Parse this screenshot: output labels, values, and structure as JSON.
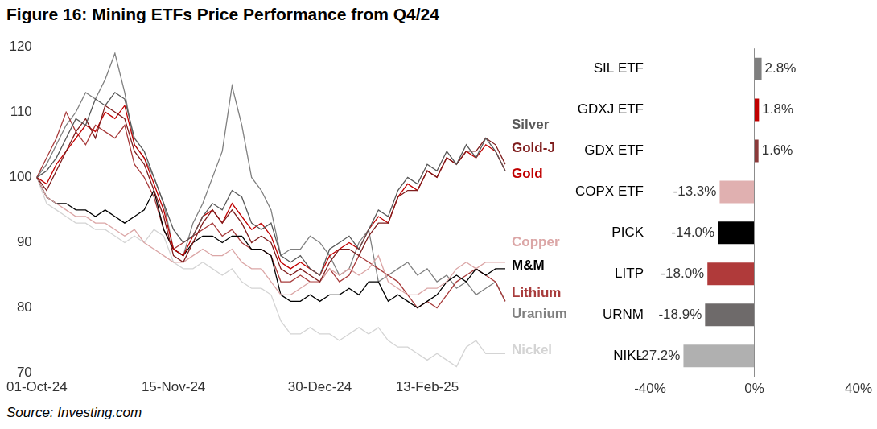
{
  "title": "Figure 16: Mining ETFs Price Performance from Q4/24",
  "source": "Source: Investing.com",
  "chart_data": [
    {
      "type": "line",
      "categories": [
        "01-Oct-24",
        null,
        null,
        null,
        null,
        null,
        null,
        null,
        null,
        null,
        null,
        null,
        null,
        null,
        "15-Nov-24",
        null,
        null,
        null,
        null,
        null,
        null,
        null,
        null,
        null,
        null,
        null,
        null,
        null,
        null,
        "30-Dec-24",
        null,
        null,
        null,
        null,
        null,
        null,
        null,
        null,
        null,
        null,
        "13-Feb-25",
        null,
        null,
        null,
        null,
        null,
        null,
        null,
        null
      ],
      "series": [
        {
          "name": "Silver",
          "color": "#595959",
          "values": [
            100,
            101,
            103,
            106,
            109,
            108,
            112,
            111,
            113,
            112,
            106,
            104,
            100,
            96,
            92,
            90,
            91,
            94,
            96,
            95,
            98,
            97,
            93,
            92,
            93,
            88,
            87,
            88,
            86,
            85,
            89,
            90,
            91,
            89,
            92,
            95,
            94,
            98,
            100,
            99,
            102,
            101,
            104,
            102,
            105,
            103,
            106,
            104,
            101
          ]
        },
        {
          "name": "Gold-J",
          "color": "#7f1d1d",
          "values": [
            100,
            98,
            101,
            104,
            107,
            109,
            106,
            111,
            110,
            109,
            104,
            102,
            98,
            94,
            88,
            87,
            90,
            93,
            95,
            93,
            95,
            93,
            90,
            91,
            90,
            86,
            85,
            86,
            85,
            84,
            87,
            89,
            89,
            88,
            91,
            93,
            93,
            97,
            98,
            98,
            101,
            100,
            103,
            102,
            104,
            104,
            106,
            105,
            102
          ]
        },
        {
          "name": "Gold",
          "color": "#c00000",
          "values": [
            100,
            99,
            102,
            104,
            106,
            108,
            107,
            110,
            109,
            111,
            105,
            103,
            99,
            95,
            89,
            88,
            91,
            94,
            95,
            93,
            96,
            94,
            92,
            93,
            91,
            87,
            86,
            87,
            86,
            85,
            88,
            89,
            90,
            89,
            92,
            94,
            93,
            97,
            99,
            98,
            101,
            100,
            103,
            102,
            104,
            103,
            105,
            104,
            101
          ]
        },
        {
          "name": "Copper",
          "color": "#dba6a6",
          "values": [
            100,
            97,
            96,
            95,
            94,
            94,
            93,
            93,
            92,
            91,
            92,
            90,
            89,
            88,
            87,
            87,
            88,
            89,
            88,
            88,
            89,
            87,
            86,
            86,
            84,
            82,
            82,
            83,
            84,
            84,
            86,
            85,
            86,
            85,
            86,
            88,
            84,
            83,
            82,
            82,
            83,
            83,
            84,
            86,
            87,
            86,
            87,
            87,
            87
          ]
        },
        {
          "name": "M&M",
          "color": "#000000",
          "values": [
            100,
            97,
            96,
            96,
            95,
            95,
            94,
            95,
            94,
            93,
            94,
            95,
            98,
            92,
            89,
            88,
            90,
            91,
            91,
            90,
            91,
            91,
            89,
            89,
            88,
            82,
            81,
            81,
            82,
            81,
            82,
            82,
            83,
            82,
            84,
            84,
            81,
            82,
            81,
            80,
            81,
            82,
            84,
            85,
            84,
            86,
            85,
            86,
            86
          ]
        },
        {
          "name": "Lithium",
          "color": "#a83c3c",
          "values": [
            100,
            103,
            106,
            110,
            107,
            105,
            108,
            107,
            106,
            108,
            102,
            100,
            97,
            92,
            89,
            90,
            91,
            92,
            93,
            91,
            92,
            90,
            89,
            89,
            88,
            84,
            84,
            85,
            84,
            84,
            86,
            84,
            85,
            88,
            87,
            86,
            85,
            84,
            82,
            80,
            81,
            80,
            82,
            84,
            85,
            86,
            85,
            84,
            81
          ]
        },
        {
          "name": "Uranium",
          "color": "#808080",
          "values": [
            100,
            102,
            105,
            108,
            110,
            113,
            112,
            115,
            119,
            113,
            105,
            103,
            100,
            96,
            89,
            88,
            93,
            96,
            100,
            104,
            114,
            108,
            100,
            98,
            95,
            88,
            89,
            89,
            91,
            90,
            88,
            85,
            86,
            90,
            92,
            84,
            85,
            86,
            87,
            85,
            86,
            84,
            85,
            83,
            84,
            82,
            83,
            84,
            81
          ]
        },
        {
          "name": "Nickel",
          "color": "#d4d4d4",
          "values": [
            100,
            96,
            95,
            94,
            93,
            93,
            92,
            92,
            91,
            90,
            91,
            90,
            92,
            91,
            87,
            86,
            86,
            87,
            86,
            85,
            86,
            84,
            83,
            83,
            82,
            78,
            76,
            76,
            77,
            76,
            76,
            75,
            76,
            77,
            76,
            77,
            75,
            74,
            74,
            73,
            72,
            73,
            72,
            71,
            74,
            75,
            73,
            73,
            73
          ]
        }
      ],
      "ylim": [
        70,
        120
      ],
      "yticks": [
        70,
        80,
        90,
        100,
        110,
        120
      ],
      "grid": false,
      "legend": "right"
    },
    {
      "type": "bar",
      "orientation": "horizontal",
      "categories": [
        "SIL ETF",
        "GDXJ ETF",
        "GDX ETF",
        "COPX ETF",
        "PICK",
        "LITP",
        "URNM",
        "NIKL"
      ],
      "values": [
        2.8,
        1.8,
        1.6,
        -13.3,
        -14.0,
        -18.0,
        -18.9,
        -27.2
      ],
      "value_labels": [
        "2.8%",
        "1.8%",
        "1.6%",
        "-13.3%",
        "-14.0%",
        "-18.0%",
        "-18.9%",
        "-27.2%"
      ],
      "colors": [
        "#7f7f7f",
        "#c00000",
        "#8b3a3a",
        "#e0b0b0",
        "#000000",
        "#b03a3a",
        "#6e6a6a",
        "#b0b0b0"
      ],
      "xlim": [
        -40,
        40
      ],
      "xticks": [
        {
          "value": -40,
          "label": "-40%"
        },
        {
          "value": 0,
          "label": "0%"
        },
        {
          "value": 40,
          "label": "40%"
        }
      ],
      "data_labels": true,
      "grid": false
    }
  ]
}
